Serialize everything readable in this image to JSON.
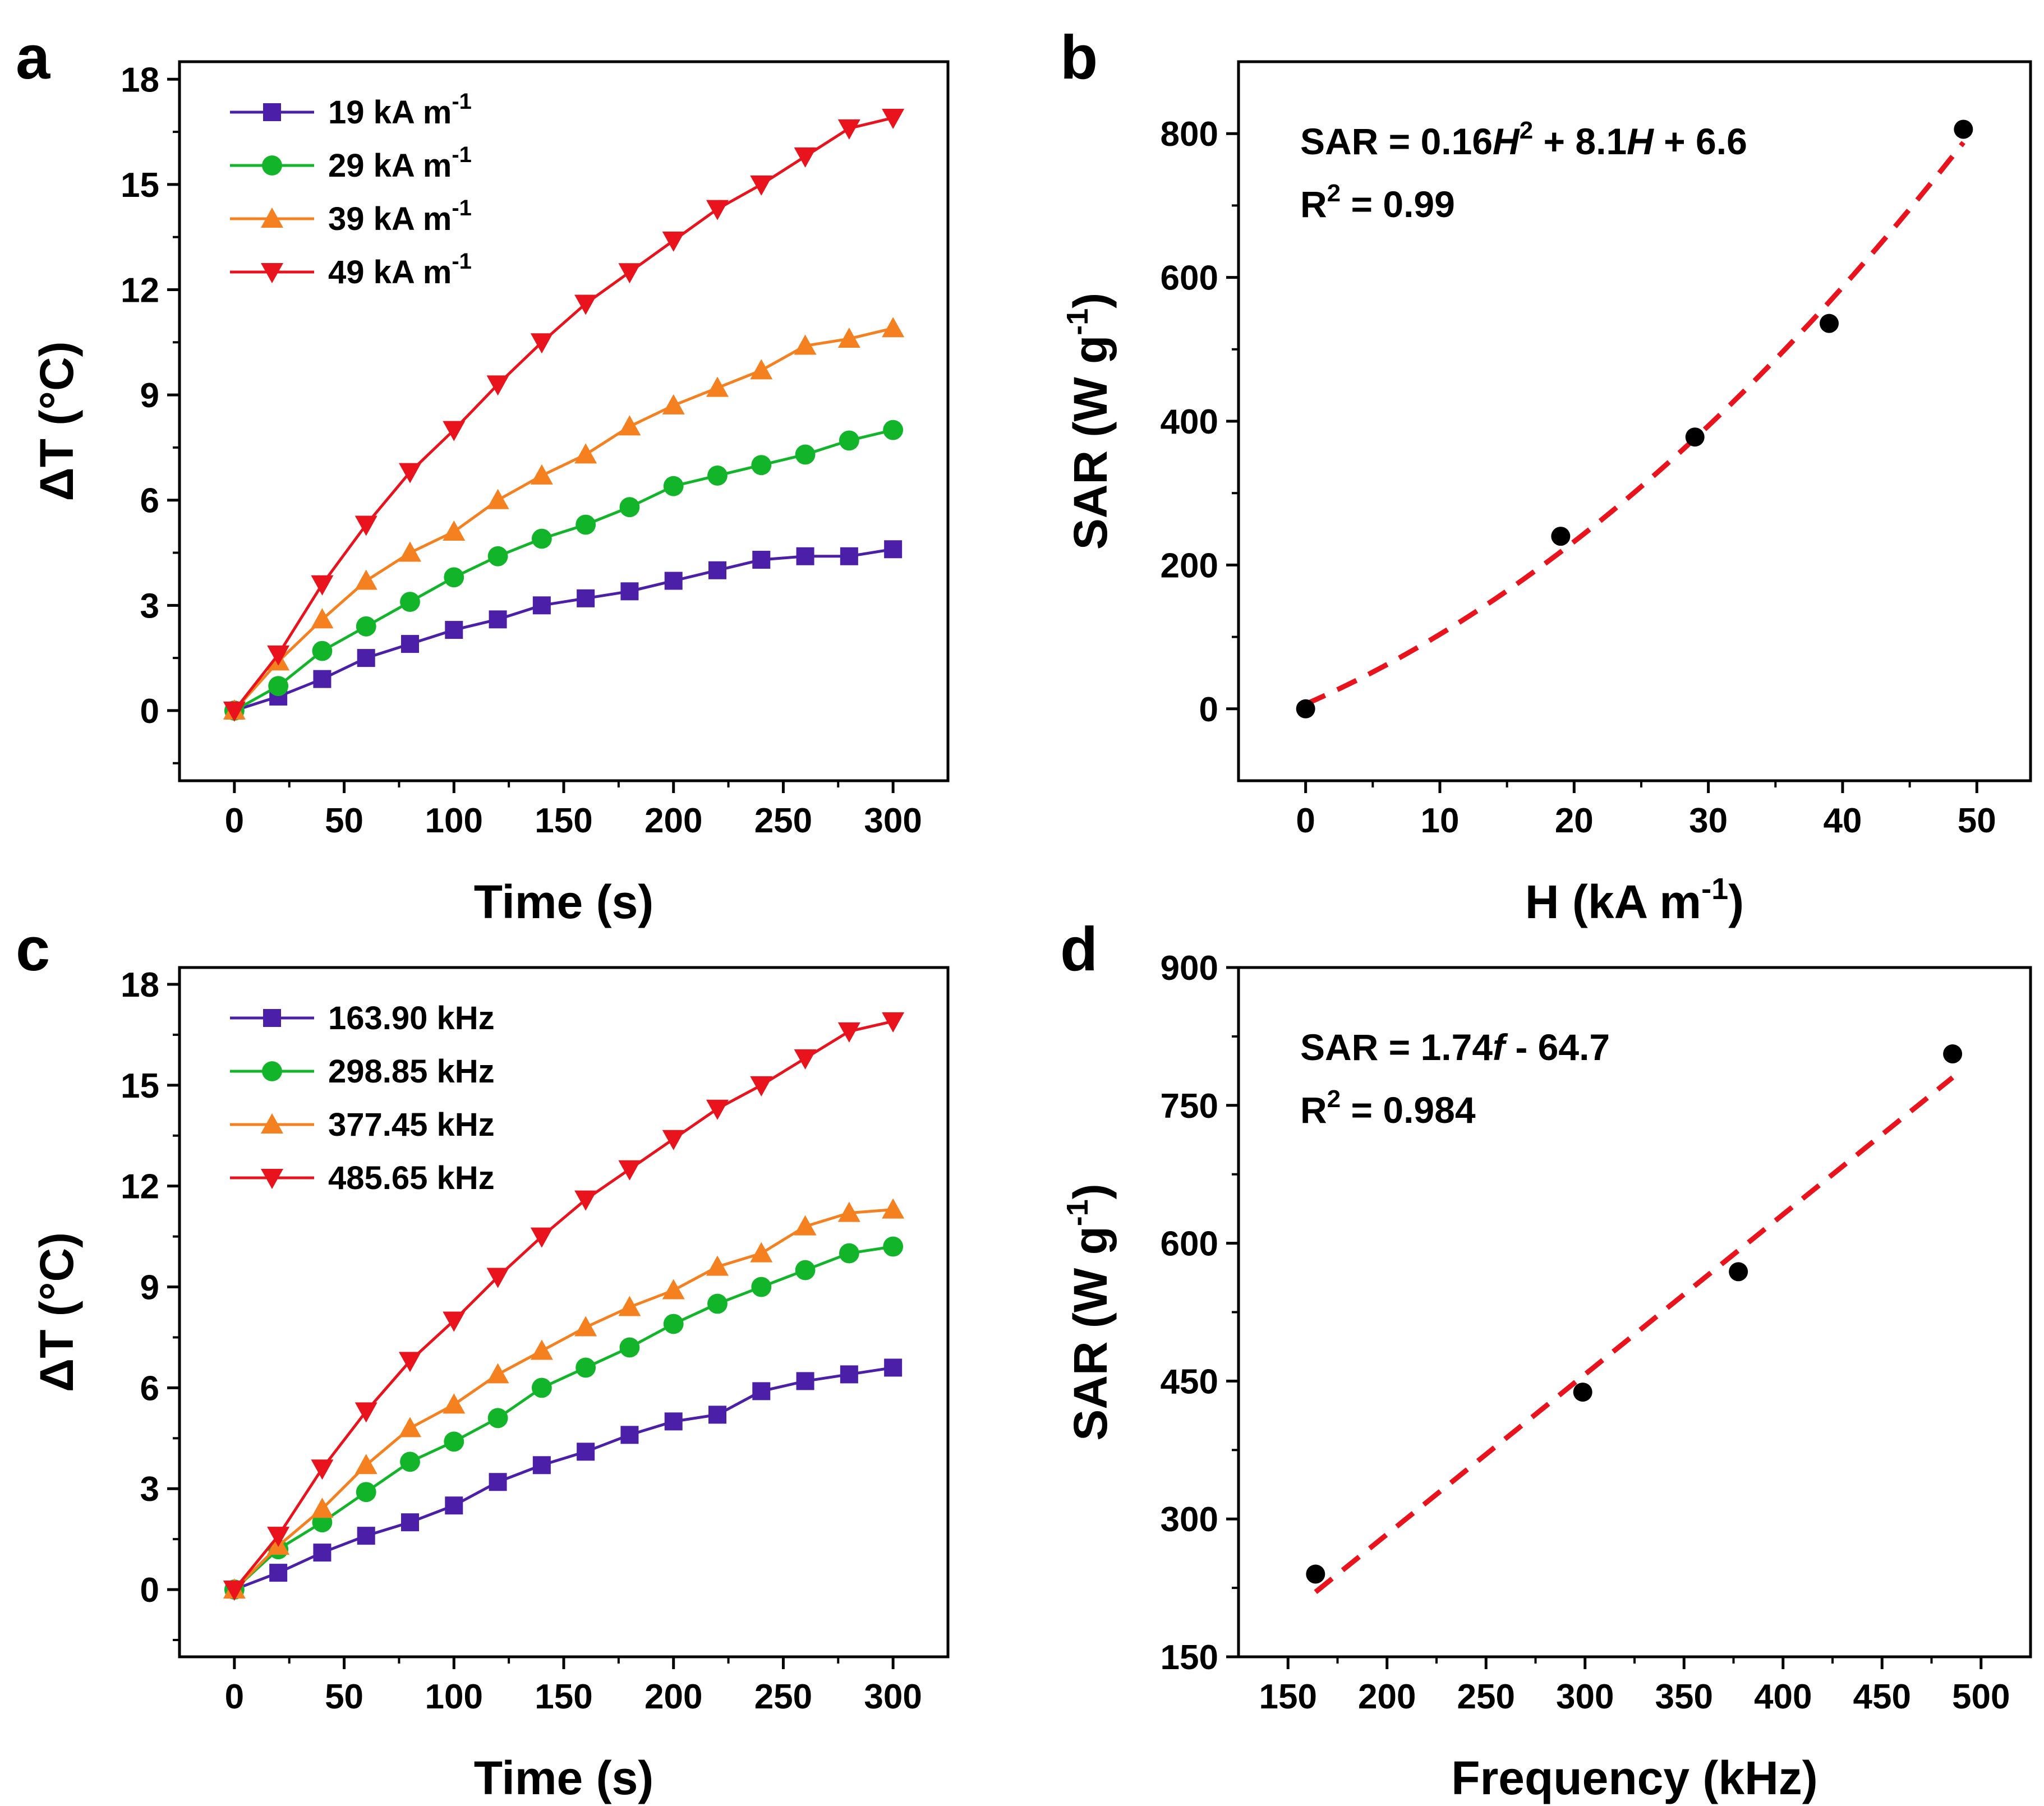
{
  "figure": {
    "panels": [
      "a",
      "b",
      "c",
      "d"
    ]
  },
  "chart_data": [
    {
      "id": "a",
      "type": "line",
      "xlabel": "Time (s)",
      "ylabel": "ΔT (°C)",
      "xlim": [
        -25,
        325
      ],
      "ylim": [
        -2,
        18.5
      ],
      "xticks": [
        0,
        50,
        100,
        150,
        200,
        250,
        300
      ],
      "yticks": [
        0,
        3,
        6,
        9,
        12,
        15,
        18
      ],
      "x": [
        0,
        20,
        40,
        60,
        80,
        100,
        120,
        140,
        160,
        180,
        200,
        220,
        240,
        260,
        280,
        300
      ],
      "series": [
        {
          "name": "19 kA m-1",
          "label_main": "19 kA m",
          "label_sup": "-1",
          "color": "#4b1fa8",
          "marker": "square",
          "values": [
            0,
            0.4,
            0.9,
            1.5,
            1.9,
            2.3,
            2.6,
            3.0,
            3.2,
            3.4,
            3.7,
            4.0,
            4.3,
            4.4,
            4.4,
            4.6
          ]
        },
        {
          "name": "29 kA m-1",
          "label_main": "29 kA m",
          "label_sup": "-1",
          "color": "#12b52a",
          "marker": "circle",
          "values": [
            0,
            0.7,
            1.7,
            2.4,
            3.1,
            3.8,
            4.4,
            4.9,
            5.3,
            5.8,
            6.4,
            6.7,
            7.0,
            7.3,
            7.7,
            8.0
          ]
        },
        {
          "name": "39 kA m-1",
          "label_main": "39 kA m",
          "label_sup": "-1",
          "color": "#f5801f",
          "marker": "triangle-up",
          "values": [
            0,
            1.4,
            2.6,
            3.7,
            4.5,
            5.1,
            6.0,
            6.7,
            7.3,
            8.1,
            8.7,
            9.2,
            9.7,
            10.4,
            10.6,
            10.9
          ]
        },
        {
          "name": "49 kA m-1",
          "label_main": "49 kA m",
          "label_sup": "-1",
          "color": "#e8131c",
          "marker": "triangle-down",
          "values": [
            0,
            1.6,
            3.6,
            5.3,
            6.8,
            8.0,
            9.3,
            10.5,
            11.6,
            12.5,
            13.4,
            14.3,
            15.0,
            15.8,
            16.6,
            16.9
          ]
        }
      ]
    },
    {
      "id": "b",
      "type": "scatter",
      "xlabel_main": "H (kA m",
      "xlabel_sup": "-1",
      "xlabel_end": ")",
      "ylabel_main": "SAR (W g",
      "ylabel_sup": "-1",
      "ylabel_end": ")",
      "xlim": [
        -5,
        54
      ],
      "ylim": [
        -100,
        900
      ],
      "xticks": [
        0,
        10,
        20,
        30,
        40,
        50
      ],
      "yticks": [
        0,
        200,
        400,
        600,
        800
      ],
      "points": {
        "x": [
          0,
          19,
          29,
          39,
          49
        ],
        "y": [
          0,
          240,
          378,
          536,
          806
        ]
      },
      "fit": {
        "a": 0.16,
        "b": 8.1,
        "c": 6.6,
        "x_range": [
          0,
          49
        ],
        "color": "#e8131c",
        "style": "dashed"
      },
      "equation": {
        "prefix": "SAR = 0.16",
        "var1": "H",
        "sup": "2",
        "mid": " + 8.1",
        "var2": "H",
        "suffix": " + 6.6"
      },
      "r2": {
        "main": "R",
        "sup": "2",
        "rest": " = 0.99"
      }
    },
    {
      "id": "c",
      "type": "line",
      "xlabel": "Time (s)",
      "ylabel": "ΔT (°C)",
      "xlim": [
        -25,
        325
      ],
      "ylim": [
        -2,
        18.5
      ],
      "xticks": [
        0,
        50,
        100,
        150,
        200,
        250,
        300
      ],
      "yticks": [
        0,
        3,
        6,
        9,
        12,
        15,
        18
      ],
      "x": [
        0,
        20,
        40,
        60,
        80,
        100,
        120,
        140,
        160,
        180,
        200,
        220,
        240,
        260,
        280,
        300
      ],
      "series": [
        {
          "name": "163.90 kHz",
          "label_main": "163.90 kHz",
          "label_sup": "",
          "color": "#4b1fa8",
          "marker": "square",
          "values": [
            0,
            0.5,
            1.1,
            1.6,
            2.0,
            2.5,
            3.2,
            3.7,
            4.1,
            4.6,
            5.0,
            5.2,
            5.9,
            6.2,
            6.4,
            6.6
          ]
        },
        {
          "name": "298.85 kHz",
          "label_main": "298.85 kHz",
          "label_sup": "",
          "color": "#12b52a",
          "marker": "circle",
          "values": [
            0,
            1.2,
            2.0,
            2.9,
            3.8,
            4.4,
            5.1,
            6.0,
            6.6,
            7.2,
            7.9,
            8.5,
            9.0,
            9.5,
            10.0,
            10.2
          ]
        },
        {
          "name": "377.45 kHz",
          "label_main": "377.45 kHz",
          "label_sup": "",
          "color": "#f5801f",
          "marker": "triangle-up",
          "values": [
            0,
            1.3,
            2.4,
            3.7,
            4.8,
            5.5,
            6.4,
            7.1,
            7.8,
            8.4,
            8.9,
            9.6,
            10.0,
            10.8,
            11.2,
            11.3
          ]
        },
        {
          "name": "485.65 kHz",
          "label_main": "485.65 kHz",
          "label_sup": "",
          "color": "#e8131c",
          "marker": "triangle-down",
          "values": [
            0,
            1.6,
            3.6,
            5.3,
            6.8,
            8.0,
            9.3,
            10.5,
            11.6,
            12.5,
            13.4,
            14.3,
            15.0,
            15.8,
            16.6,
            16.9
          ]
        }
      ]
    },
    {
      "id": "d",
      "type": "scatter",
      "xlabel": "Frequency (kHz)",
      "ylabel_main": "SAR (W g",
      "ylabel_sup": "-1",
      "ylabel_end": ")",
      "xlim": [
        125,
        525
      ],
      "ylim": [
        150,
        900
      ],
      "xticks": [
        150,
        200,
        250,
        300,
        350,
        400,
        450,
        500
      ],
      "yticks": [
        150,
        300,
        450,
        600,
        750,
        900
      ],
      "points": {
        "x": [
          163.9,
          298.85,
          377.45,
          485.65
        ],
        "y": [
          240,
          438,
          569,
          806
        ]
      },
      "fit": {
        "a": 0,
        "b": 1.74,
        "c": -64.7,
        "x_range": [
          163.9,
          485.65
        ],
        "color": "#e8131c",
        "style": "dashed"
      },
      "equation": {
        "prefix": "SAR = 1.74",
        "var1": "f",
        "sup": "",
        "mid": " - 64.7",
        "var2": "",
        "suffix": ""
      },
      "r2": {
        "main": "R",
        "sup": "2",
        "rest": " = 0.984"
      }
    }
  ]
}
